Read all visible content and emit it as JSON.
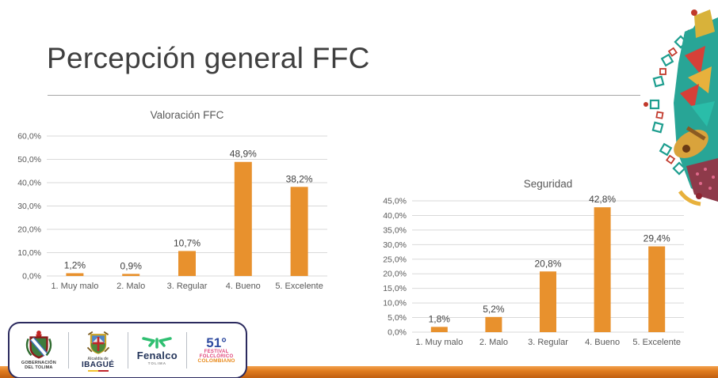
{
  "slide": {
    "title": "Percepción general FFC"
  },
  "chart_data": [
    {
      "type": "bar",
      "title": "Valoración FFC",
      "categories": [
        "1. Muy malo",
        "2. Malo",
        "3. Regular",
        "4. Bueno",
        "5. Excelente"
      ],
      "values": [
        1.2,
        0.9,
        10.7,
        48.9,
        38.2
      ],
      "value_labels": [
        "1,2%",
        "0,9%",
        "10,7%",
        "48,9%",
        "38,2%"
      ],
      "xlabel": "",
      "ylabel": "",
      "ylim": [
        0,
        60
      ],
      "ytick_step": 10,
      "ytick_labels": [
        "0,0%",
        "10,0%",
        "20,0%",
        "30,0%",
        "40,0%",
        "50,0%",
        "60,0%"
      ],
      "grid": true,
      "legend": false,
      "bar_color": "#E8912D"
    },
    {
      "type": "bar",
      "title": "Seguridad",
      "categories": [
        "1. Muy malo",
        "2. Malo",
        "3. Regular",
        "4. Bueno",
        "5. Excelente"
      ],
      "values": [
        1.8,
        5.2,
        20.8,
        42.8,
        29.4
      ],
      "value_labels": [
        "1,8%",
        "5,2%",
        "20,8%",
        "42,8%",
        "29,4%"
      ],
      "xlabel": "",
      "ylabel": "",
      "ylim": [
        0,
        45
      ],
      "ytick_step": 5,
      "ytick_labels": [
        "0,0%",
        "5,0%",
        "10,0%",
        "15,0%",
        "20,0%",
        "25,0%",
        "30,0%",
        "35,0%",
        "40,0%",
        "45,0%"
      ],
      "grid": true,
      "legend": false,
      "bar_color": "#E8912D"
    }
  ],
  "footer": {
    "logos": [
      {
        "name": "Gobernación del Tolima",
        "lines": [
          "GOBERNACIÓN",
          "DEL TOLIMA"
        ]
      },
      {
        "name": "Alcaldía de Ibagué",
        "lines": [
          "Alcaldía de",
          "IBAGUÉ"
        ]
      },
      {
        "name": "Fenalco Tolima",
        "lines": [
          "Fenalco",
          "TOLIMA"
        ]
      },
      {
        "name": "51 Festival Folclórico Colombiano",
        "lines": [
          "51°",
          "FESTIVAL",
          "FOLCLÓRICO",
          "COLOMBIANO"
        ]
      }
    ]
  },
  "colors": {
    "bar": "#E8912D",
    "gridline": "#D9D9D9",
    "chart_text": "#595959",
    "data_label_text": "#404040",
    "slide_title_text": "#3F3F3F",
    "footer_stripe_top": "#F2A24E",
    "footer_stripe_bottom": "#C05E10",
    "logo_panel_border": "#2B2A5E"
  }
}
